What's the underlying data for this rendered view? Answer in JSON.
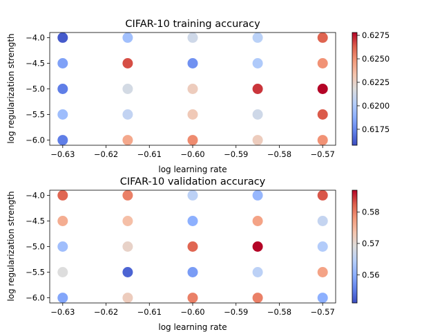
{
  "chart_data": [
    {
      "type": "scatter",
      "title": "CIFAR-10 training accuracy",
      "xlabel": "log learning rate",
      "ylabel": "log regularization strength",
      "xlim": [
        -0.633,
        -0.567
      ],
      "ylim": [
        -6.1,
        -3.9
      ],
      "xticks": [
        -0.63,
        -0.62,
        -0.61,
        -0.6,
        -0.59,
        -0.58,
        -0.57
      ],
      "yticks": [
        -6.0,
        -5.5,
        -5.0,
        -4.5,
        -4.0
      ],
      "colormap": "coolwarm",
      "color_range": [
        0.6158,
        0.6278
      ],
      "colorbar_ticks": [
        0.6175,
        0.62,
        0.6225,
        0.625,
        0.6275
      ],
      "points": [
        {
          "x": -0.63,
          "y": -4.0,
          "v": 0.6162
        },
        {
          "x": -0.63,
          "y": -4.5,
          "v": 0.6183
        },
        {
          "x": -0.63,
          "y": -5.0,
          "v": 0.6172
        },
        {
          "x": -0.63,
          "y": -5.5,
          "v": 0.6194
        },
        {
          "x": -0.63,
          "y": -6.0,
          "v": 0.6172
        },
        {
          "x": -0.615,
          "y": -4.0,
          "v": 0.6195
        },
        {
          "x": -0.615,
          "y": -4.5,
          "v": 0.6266
        },
        {
          "x": -0.615,
          "y": -5.0,
          "v": 0.6214
        },
        {
          "x": -0.615,
          "y": -5.5,
          "v": 0.6207
        },
        {
          "x": -0.615,
          "y": -6.0,
          "v": 0.6243
        },
        {
          "x": -0.6,
          "y": -4.0,
          "v": 0.6212
        },
        {
          "x": -0.6,
          "y": -4.5,
          "v": 0.6178
        },
        {
          "x": -0.6,
          "y": -5.0,
          "v": 0.6228
        },
        {
          "x": -0.6,
          "y": -5.5,
          "v": 0.623
        },
        {
          "x": -0.6,
          "y": -6.0,
          "v": 0.6252
        },
        {
          "x": -0.585,
          "y": -4.0,
          "v": 0.6204
        },
        {
          "x": -0.585,
          "y": -4.5,
          "v": 0.62
        },
        {
          "x": -0.585,
          "y": -5.0,
          "v": 0.627
        },
        {
          "x": -0.585,
          "y": -5.5,
          "v": 0.6212
        },
        {
          "x": -0.585,
          "y": -6.0,
          "v": 0.6228
        },
        {
          "x": -0.57,
          "y": -4.0,
          "v": 0.6262
        },
        {
          "x": -0.57,
          "y": -4.5,
          "v": 0.625
        },
        {
          "x": -0.57,
          "y": -5.0,
          "v": 0.6278
        },
        {
          "x": -0.57,
          "y": -5.5,
          "v": 0.6264
        },
        {
          "x": -0.57,
          "y": -6.0,
          "v": 0.625
        }
      ]
    },
    {
      "type": "scatter",
      "title": "CIFAR-10 validation accuracy",
      "xlabel": "log learning rate",
      "ylabel": "log regularization strength",
      "xlim": [
        -0.633,
        -0.567
      ],
      "ylim": [
        -6.1,
        -3.9
      ],
      "xticks": [
        -0.63,
        -0.62,
        -0.61,
        -0.6,
        -0.59,
        -0.58,
        -0.57
      ],
      "yticks": [
        -6.0,
        -5.5,
        -5.0,
        -4.5,
        -4.0
      ],
      "colormap": "coolwarm",
      "color_range": [
        0.551,
        0.587
      ],
      "colorbar_ticks": [
        0.56,
        0.57,
        0.58
      ],
      "points": [
        {
          "x": -0.63,
          "y": -4.0,
          "v": 0.582
        },
        {
          "x": -0.63,
          "y": -4.5,
          "v": 0.576
        },
        {
          "x": -0.63,
          "y": -5.0,
          "v": 0.562
        },
        {
          "x": -0.63,
          "y": -5.5,
          "v": 0.569
        },
        {
          "x": -0.63,
          "y": -6.0,
          "v": 0.559
        },
        {
          "x": -0.615,
          "y": -4.0,
          "v": 0.58
        },
        {
          "x": -0.615,
          "y": -4.5,
          "v": 0.574
        },
        {
          "x": -0.615,
          "y": -5.0,
          "v": 0.571
        },
        {
          "x": -0.615,
          "y": -5.5,
          "v": 0.553
        },
        {
          "x": -0.615,
          "y": -6.0,
          "v": 0.572
        },
        {
          "x": -0.6,
          "y": -4.0,
          "v": 0.565
        },
        {
          "x": -0.6,
          "y": -4.5,
          "v": 0.56
        },
        {
          "x": -0.6,
          "y": -5.0,
          "v": 0.582
        },
        {
          "x": -0.6,
          "y": -5.5,
          "v": 0.558
        },
        {
          "x": -0.6,
          "y": -6.0,
          "v": 0.58
        },
        {
          "x": -0.585,
          "y": -4.0,
          "v": 0.561
        },
        {
          "x": -0.585,
          "y": -4.5,
          "v": 0.577
        },
        {
          "x": -0.585,
          "y": -5.0,
          "v": 0.587
        },
        {
          "x": -0.585,
          "y": -5.5,
          "v": 0.565
        },
        {
          "x": -0.585,
          "y": -6.0,
          "v": 0.58
        },
        {
          "x": -0.57,
          "y": -4.0,
          "v": 0.583
        },
        {
          "x": -0.57,
          "y": -4.5,
          "v": 0.566
        },
        {
          "x": -0.57,
          "y": -5.0,
          "v": 0.564
        },
        {
          "x": -0.57,
          "y": -5.5,
          "v": 0.577
        },
        {
          "x": -0.57,
          "y": -6.0,
          "v": 0.56
        }
      ]
    }
  ]
}
